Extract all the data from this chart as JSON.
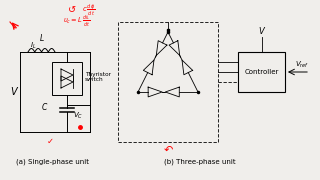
{
  "bg_color": "#f0eeeb",
  "label_a": "(a) Single-phase unit",
  "label_b": "(b) Three-phase unit",
  "controller_label": "Controller",
  "v_label": "V",
  "vref_label": "V_{ref}",
  "thyristor_label": "Thyristor\nswitch",
  "L_label": "L",
  "C_label": "C",
  "Vc_label": "V_C",
  "V_left_label": "V",
  "IL_label": "I_{L}"
}
